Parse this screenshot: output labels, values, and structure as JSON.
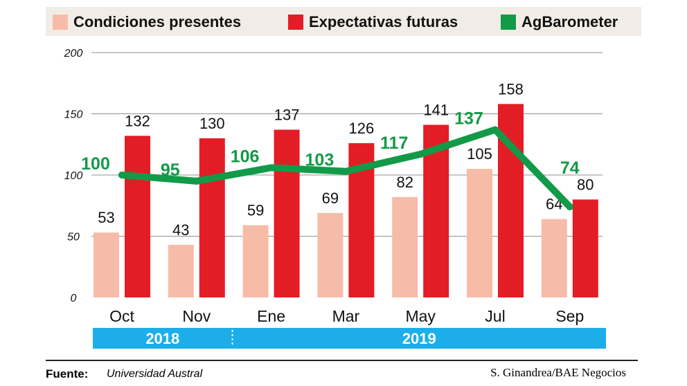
{
  "chart_data": {
    "type": "bar",
    "categories": [
      "Oct",
      "Nov",
      "Ene",
      "Mar",
      "May",
      "Jul",
      "Sep"
    ],
    "series": [
      {
        "name": "Condiciones presentes",
        "kind": "bar",
        "color": "#f6bca8",
        "values": [
          53,
          43,
          59,
          69,
          82,
          105,
          64
        ]
      },
      {
        "name": "Expectativas futuras",
        "kind": "bar",
        "color": "#e31d25",
        "values": [
          132,
          130,
          137,
          126,
          141,
          158,
          80
        ]
      },
      {
        "name": "AgBarometer",
        "kind": "line",
        "color": "#129a48",
        "values": [
          100,
          95,
          106,
          103,
          117,
          137,
          74
        ]
      }
    ],
    "ylim": [
      0,
      200
    ],
    "yticks": [
      "0",
      "50",
      "100",
      "150",
      "200"
    ],
    "grid": true,
    "legend_position": "top",
    "years": [
      {
        "label": "2018",
        "categories": [
          "Oct",
          "Nov"
        ]
      },
      {
        "label": "2019",
        "categories": [
          "Ene",
          "Mar",
          "May",
          "Jul",
          "Sep"
        ]
      }
    ],
    "year_band_color": "#1daeea"
  },
  "footer": {
    "source_label": "Fuente:",
    "source_value": "Universidad Austral",
    "credit": "S. Ginandrea/BAE Negocios"
  }
}
